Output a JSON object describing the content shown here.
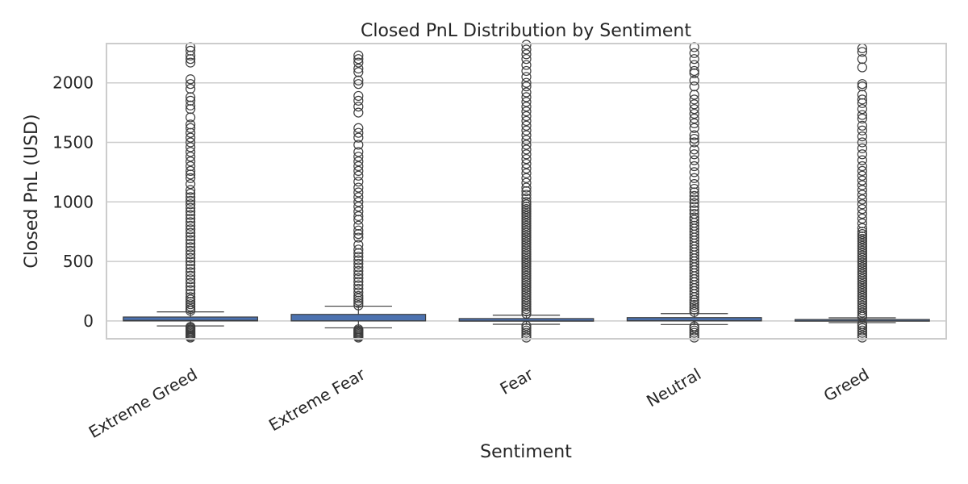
{
  "chart_data": {
    "type": "box",
    "title": "Closed PnL Distribution by Sentiment",
    "xlabel": "Sentiment",
    "ylabel": "Closed PnL (USD)",
    "ylim": [
      -150,
      2330
    ],
    "yticks": [
      0,
      500,
      1000,
      1500,
      2000
    ],
    "grid": true,
    "colors": {
      "box": "#4c72b0",
      "line": "#3d3d3d",
      "grid": "#cccccc",
      "frame": "#cccccc"
    },
    "categories": [
      "Extreme Greed",
      "Extreme Fear",
      "Fear",
      "Neutral",
      "Greed"
    ],
    "boxes": [
      {
        "q1": 0,
        "median": 4,
        "q3": 33,
        "whisker_low": -42,
        "whisker_high": 76,
        "outliers_low": [
          -50,
          -60,
          -70,
          -80,
          -90,
          -100,
          -110,
          -120,
          -130,
          -140
        ],
        "outliers_high": [
          85,
          100,
          120,
          140,
          160,
          180,
          200,
          230,
          260,
          290,
          320,
          350,
          380,
          410,
          440,
          470,
          500,
          530,
          560,
          590,
          620,
          650,
          680,
          710,
          740,
          770,
          800,
          830,
          860,
          890,
          920,
          950,
          980,
          1010,
          1040,
          1070,
          1100,
          1150,
          1200,
          1230,
          1260,
          1300,
          1340,
          1380,
          1420,
          1460,
          1500,
          1540,
          1580,
          1620,
          1650,
          1710,
          1780,
          1810,
          1850,
          1880,
          1950,
          1990,
          2030,
          2170,
          2200,
          2230,
          2270,
          2300
        ]
      },
      {
        "q1": 0,
        "median": 0,
        "q3": 55,
        "whisker_low": -58,
        "whisker_high": 124,
        "outliers_low": [
          -70,
          -80,
          -90,
          -100,
          -110,
          -120,
          -130,
          -140
        ],
        "outliers_high": [
          130,
          150,
          170,
          190,
          210,
          240,
          270,
          300,
          330,
          360,
          390,
          420,
          450,
          480,
          510,
          540,
          570,
          600,
          640,
          700,
          730,
          760,
          800,
          850,
          880,
          920,
          960,
          1000,
          1040,
          1080,
          1120,
          1170,
          1220,
          1260,
          1300,
          1340,
          1380,
          1420,
          1480,
          1540,
          1580,
          1620,
          1750,
          1800,
          1850,
          1890,
          1990,
          2020,
          2090,
          2120,
          2170,
          2200,
          2230
        ]
      },
      {
        "q1": -2,
        "median": 0,
        "q3": 20,
        "whisker_low": -28,
        "whisker_high": 48,
        "outliers_low": [
          -40,
          -60,
          -80,
          -100,
          -120,
          -140
        ],
        "outliers_high": [
          60,
          80,
          100,
          120,
          140,
          160,
          180,
          200,
          220,
          240,
          260,
          280,
          300,
          320,
          340,
          360,
          380,
          400,
          420,
          440,
          460,
          480,
          500,
          520,
          540,
          560,
          580,
          600,
          620,
          640,
          660,
          680,
          700,
          720,
          740,
          760,
          780,
          800,
          820,
          840,
          860,
          880,
          900,
          920,
          940,
          960,
          980,
          1000,
          1030,
          1060,
          1090,
          1120,
          1160,
          1200,
          1240,
          1280,
          1320,
          1360,
          1400,
          1440,
          1480,
          1520,
          1560,
          1600,
          1640,
          1680,
          1720,
          1760,
          1800,
          1840,
          1880,
          1920,
          1970,
          2000,
          2050,
          2100,
          2150,
          2200,
          2240,
          2280,
          2320
        ]
      },
      {
        "q1": 0,
        "median": 3,
        "q3": 28,
        "whisker_low": -30,
        "whisker_high": 62,
        "outliers_low": [
          -45,
          -60,
          -80,
          -100,
          -120,
          -140
        ],
        "outliers_high": [
          75,
          95,
          115,
          135,
          155,
          175,
          200,
          225,
          250,
          275,
          300,
          325,
          350,
          375,
          400,
          425,
          450,
          475,
          500,
          525,
          550,
          575,
          600,
          625,
          650,
          675,
          700,
          725,
          750,
          775,
          800,
          825,
          850,
          870,
          900,
          930,
          960,
          990,
          1020,
          1050,
          1080,
          1110,
          1150,
          1200,
          1250,
          1300,
          1350,
          1400,
          1440,
          1500,
          1530,
          1560,
          1620,
          1660,
          1700,
          1740,
          1780,
          1820,
          1860,
          1900,
          1970,
          2020,
          2080,
          2100,
          2150,
          2200,
          2250,
          2300
        ]
      },
      {
        "q1": -2,
        "median": 0,
        "q3": 12,
        "whisker_low": -14,
        "whisker_high": 26,
        "outliers_low": [
          -25,
          -40,
          -60,
          -80,
          -100,
          -120,
          -140
        ],
        "outliers_high": [
          35,
          50,
          70,
          90,
          110,
          130,
          150,
          170,
          190,
          210,
          230,
          250,
          270,
          290,
          310,
          330,
          350,
          370,
          390,
          410,
          430,
          450,
          470,
          490,
          510,
          530,
          550,
          570,
          590,
          610,
          630,
          650,
          670,
          690,
          710,
          730,
          750,
          780,
          820,
          860,
          900,
          940,
          980,
          1020,
          1060,
          1100,
          1140,
          1180,
          1220,
          1260,
          1300,
          1350,
          1400,
          1450,
          1500,
          1550,
          1600,
          1640,
          1700,
          1730,
          1780,
          1830,
          1860,
          1900,
          1970,
          1990,
          2130,
          2200,
          2260,
          2290
        ]
      }
    ]
  }
}
